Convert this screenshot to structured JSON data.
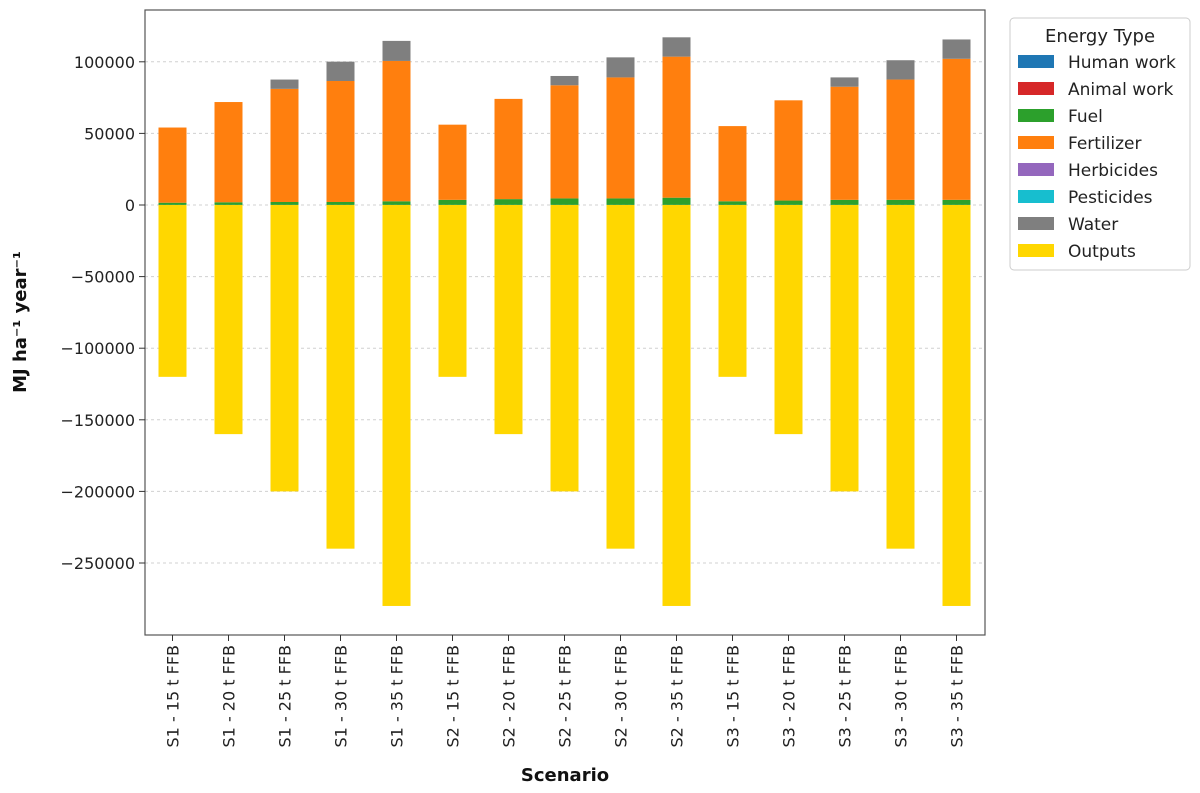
{
  "chart_data": {
    "type": "bar",
    "stacked": true,
    "xlabel": "Scenario",
    "ylabel": "MJ ha⁻¹ year⁻¹",
    "ylim": [
      -300000,
      125000
    ],
    "yticks": [
      100000,
      50000,
      0,
      -50000,
      -100000,
      -150000,
      -200000,
      -250000
    ],
    "ytick_labels": [
      "100000",
      "50000",
      "0",
      "−50000",
      "−100000",
      "−150000",
      "−200000",
      "−250000"
    ],
    "grid": "horizontal dashed",
    "legend_title": "Energy Type",
    "legend_position": "top-right, outside",
    "categories": [
      "S1 - 15 t FFB",
      "S1 - 20 t FFB",
      "S1 - 25 t FFB",
      "S1 - 30 t FFB",
      "S1 - 35 t FFB",
      "S2 - 15 t FFB",
      "S2 - 20 t FFB",
      "S2 - 25 t FFB",
      "S2 - 30 t FFB",
      "S2 - 35 t FFB",
      "S3 - 15 t FFB",
      "S3 - 20 t FFB",
      "S3 - 25 t FFB",
      "S3 - 30 t FFB",
      "S3 - 35 t FFB"
    ],
    "series": [
      {
        "name": "Human work",
        "color": "#1f77b4",
        "values": [
          100,
          100,
          100,
          100,
          100,
          100,
          100,
          100,
          100,
          100,
          100,
          100,
          100,
          100,
          100
        ]
      },
      {
        "name": "Animal work",
        "color": "#d62728",
        "values": [
          0,
          0,
          0,
          0,
          0,
          0,
          0,
          0,
          0,
          0,
          0,
          0,
          0,
          0,
          0
        ]
      },
      {
        "name": "Fuel",
        "color": "#2ca02c",
        "values": [
          1500,
          1800,
          2000,
          2000,
          2500,
          3500,
          4000,
          4500,
          4500,
          5000,
          2500,
          3000,
          3500,
          3500,
          3500
        ]
      },
      {
        "name": "Fertilizer",
        "color": "#ff7f0e",
        "values": [
          52500,
          70000,
          79000,
          84500,
          98000,
          52500,
          70000,
          79000,
          84500,
          98500,
          52500,
          70000,
          79000,
          84000,
          98500
        ]
      },
      {
        "name": "Herbicides",
        "color": "#9467bd",
        "values": [
          0,
          0,
          0,
          0,
          0,
          0,
          0,
          0,
          0,
          0,
          0,
          0,
          0,
          0,
          0
        ]
      },
      {
        "name": "Pesticides",
        "color": "#17becf",
        "values": [
          0,
          0,
          0,
          0,
          0,
          0,
          0,
          0,
          0,
          0,
          0,
          0,
          0,
          0,
          0
        ]
      },
      {
        "name": "Water",
        "color": "#7f7f7f",
        "values": [
          0,
          0,
          6500,
          13500,
          14000,
          0,
          0,
          6500,
          14000,
          13500,
          0,
          0,
          6500,
          13500,
          13500
        ]
      },
      {
        "name": "Outputs",
        "color": "#ffd700",
        "values": [
          -120000,
          -160000,
          -200000,
          -240000,
          -280000,
          -120000,
          -160000,
          -200000,
          -240000,
          -280000,
          -120000,
          -160000,
          -200000,
          -240000,
          -280000
        ]
      }
    ]
  }
}
